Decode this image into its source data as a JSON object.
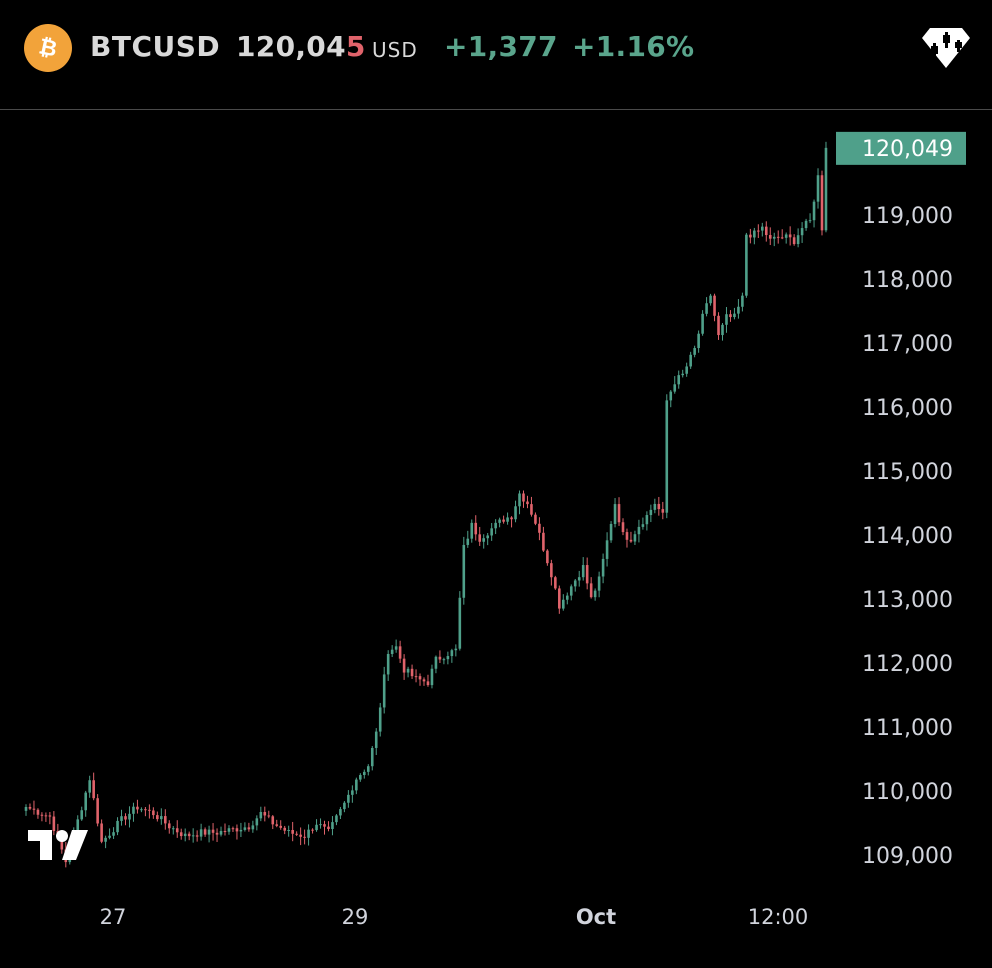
{
  "header": {
    "symbol": "BTCUSD",
    "price_main": "120,04",
    "price_last_digit": "5",
    "currency": "USD",
    "change": "+1,377",
    "change_pct": "+1.16%",
    "icon": "bitcoin-icon",
    "menu_icon": "candlestick-diamond-icon"
  },
  "colors": {
    "up": "#4fa08a",
    "down": "#e0636b",
    "badge": "#4fa08a",
    "coin": "#f2a33a"
  },
  "logo": "tradingview-logo-icon",
  "chart_data": {
    "type": "candlestick",
    "last_price": 120049,
    "last_price_label": "120,049",
    "ylim": [
      108700,
      120300
    ],
    "y_ticks": [
      109000,
      110000,
      111000,
      112000,
      113000,
      114000,
      115000,
      116000,
      117000,
      118000,
      119000
    ],
    "y_tick_labels": [
      "109,000",
      "110,000",
      "111,000",
      "112,000",
      "113,000",
      "114,000",
      "115,000",
      "116,000",
      "117,000",
      "118,000",
      "119,000"
    ],
    "x_labels": [
      "27",
      "29",
      "Oct",
      "12:00"
    ],
    "bold_x_label": "Oct",
    "close_path": [
      [
        0,
        109750
      ],
      [
        6,
        109600
      ],
      [
        10,
        108900
      ],
      [
        14,
        109750
      ],
      [
        16,
        110200
      ],
      [
        19,
        109200
      ],
      [
        24,
        109550
      ],
      [
        28,
        109750
      ],
      [
        32,
        109650
      ],
      [
        36,
        109450
      ],
      [
        40,
        109300
      ],
      [
        44,
        109350
      ],
      [
        48,
        109350
      ],
      [
        52,
        109400
      ],
      [
        56,
        109450
      ],
      [
        59,
        109650
      ],
      [
        62,
        109500
      ],
      [
        66,
        109350
      ],
      [
        70,
        109300
      ],
      [
        73,
        109500
      ],
      [
        76,
        109350
      ],
      [
        80,
        109800
      ],
      [
        83,
        110200
      ],
      [
        86,
        110400
      ],
      [
        88,
        110900
      ],
      [
        91,
        112200
      ],
      [
        93,
        112250
      ],
      [
        95,
        111900
      ],
      [
        98,
        111750
      ],
      [
        101,
        111700
      ],
      [
        103,
        112050
      ],
      [
        106,
        112150
      ],
      [
        108,
        112200
      ],
      [
        110,
        113800
      ],
      [
        112,
        114150
      ],
      [
        114,
        113950
      ],
      [
        117,
        114100
      ],
      [
        120,
        114250
      ],
      [
        122,
        114300
      ],
      [
        124,
        114650
      ],
      [
        126,
        114500
      ],
      [
        128,
        114200
      ],
      [
        130,
        113800
      ],
      [
        132,
        113400
      ],
      [
        134,
        112900
      ],
      [
        136,
        113100
      ],
      [
        138,
        113300
      ],
      [
        140,
        113500
      ],
      [
        142,
        113000
      ],
      [
        144,
        113300
      ],
      [
        146,
        113900
      ],
      [
        148,
        114500
      ],
      [
        150,
        114000
      ],
      [
        152,
        113950
      ],
      [
        154,
        114150
      ],
      [
        156,
        114300
      ],
      [
        158,
        114500
      ],
      [
        160,
        114300
      ],
      [
        161,
        116100
      ],
      [
        163,
        116400
      ],
      [
        165,
        116500
      ],
      [
        168,
        116900
      ],
      [
        170,
        117400
      ],
      [
        172,
        117750
      ],
      [
        174,
        117100
      ],
      [
        176,
        117400
      ],
      [
        178,
        117400
      ],
      [
        180,
        117700
      ],
      [
        181,
        118700
      ],
      [
        183,
        118700
      ],
      [
        185,
        118800
      ],
      [
        187,
        118600
      ],
      [
        189,
        118650
      ],
      [
        191,
        118650
      ],
      [
        193,
        118600
      ],
      [
        195,
        118800
      ],
      [
        197,
        118900
      ],
      [
        199,
        119600
      ],
      [
        200,
        118800
      ],
      [
        201,
        120049
      ]
    ]
  }
}
